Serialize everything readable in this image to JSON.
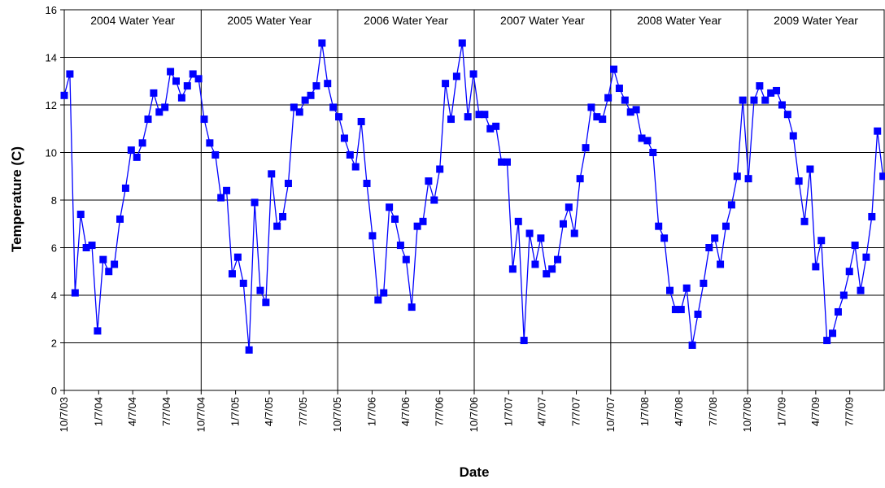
{
  "chart_data": {
    "type": "line",
    "xlabel": "Date",
    "ylabel": "Temperature (C)",
    "ylim": [
      0,
      16
    ],
    "yticks": [
      0,
      2,
      4,
      6,
      8,
      10,
      12,
      14,
      16
    ],
    "xlim": [
      "2003-10-07",
      "2009-10-07"
    ],
    "grid": "horizontal",
    "x_tick_labels": [
      {
        "date": "2003-10-07",
        "label": "10/7/03"
      },
      {
        "date": "2004-01-07",
        "label": "1/7/04"
      },
      {
        "date": "2004-04-07",
        "label": "4/7/04"
      },
      {
        "date": "2004-07-07",
        "label": "7/7/04"
      },
      {
        "date": "2004-10-07",
        "label": "10/7/04"
      },
      {
        "date": "2005-01-07",
        "label": "1/7/05"
      },
      {
        "date": "2005-04-07",
        "label": "4/7/05"
      },
      {
        "date": "2005-07-07",
        "label": "7/7/05"
      },
      {
        "date": "2005-10-07",
        "label": "10/7/05"
      },
      {
        "date": "2006-01-07",
        "label": "1/7/06"
      },
      {
        "date": "2006-04-07",
        "label": "4/7/06"
      },
      {
        "date": "2006-07-07",
        "label": "7/7/06"
      },
      {
        "date": "2006-10-07",
        "label": "10/7/06"
      },
      {
        "date": "2007-01-07",
        "label": "1/7/07"
      },
      {
        "date": "2007-04-07",
        "label": "4/7/07"
      },
      {
        "date": "2007-07-07",
        "label": "7/7/07"
      },
      {
        "date": "2007-10-07",
        "label": "10/7/07"
      },
      {
        "date": "2008-01-07",
        "label": "1/7/08"
      },
      {
        "date": "2008-04-07",
        "label": "4/7/08"
      },
      {
        "date": "2008-07-07",
        "label": "7/7/08"
      },
      {
        "date": "2008-10-07",
        "label": "10/7/08"
      },
      {
        "date": "2009-01-07",
        "label": "1/7/09"
      },
      {
        "date": "2009-04-07",
        "label": "4/7/09"
      },
      {
        "date": "2009-07-07",
        "label": "7/7/09"
      }
    ],
    "water_years": [
      {
        "label": "2004 Water Year",
        "start": "2003-10-07",
        "end": "2004-10-07"
      },
      {
        "label": "2005 Water Year",
        "start": "2004-10-07",
        "end": "2005-10-07"
      },
      {
        "label": "2006 Water Year",
        "start": "2005-10-07",
        "end": "2006-10-07"
      },
      {
        "label": "2007 Water Year",
        "start": "2006-10-07",
        "end": "2007-10-07"
      },
      {
        "label": "2008 Water Year",
        "start": "2007-10-07",
        "end": "2008-10-07"
      },
      {
        "label": "2009 Water Year",
        "start": "2008-10-07",
        "end": "2009-10-07"
      }
    ],
    "series": [
      {
        "color": "#0000ff",
        "marker": "square",
        "points": [
          {
            "date": "2003-10-07",
            "y": 12.4
          },
          {
            "date": "2003-10-22",
            "y": 13.3
          },
          {
            "date": "2003-11-05",
            "y": 4.1
          },
          {
            "date": "2003-11-20",
            "y": 7.4
          },
          {
            "date": "2003-12-05",
            "y": 6.0
          },
          {
            "date": "2003-12-20",
            "y": 6.1
          },
          {
            "date": "2004-01-04",
            "y": 2.5
          },
          {
            "date": "2004-01-19",
            "y": 5.5
          },
          {
            "date": "2004-02-03",
            "y": 5.0
          },
          {
            "date": "2004-02-18",
            "y": 5.3
          },
          {
            "date": "2004-03-04",
            "y": 7.2
          },
          {
            "date": "2004-03-19",
            "y": 8.5
          },
          {
            "date": "2004-04-03",
            "y": 10.1
          },
          {
            "date": "2004-04-18",
            "y": 9.8
          },
          {
            "date": "2004-05-03",
            "y": 10.4
          },
          {
            "date": "2004-05-18",
            "y": 11.4
          },
          {
            "date": "2004-06-02",
            "y": 12.5
          },
          {
            "date": "2004-06-17",
            "y": 11.7
          },
          {
            "date": "2004-07-02",
            "y": 11.9
          },
          {
            "date": "2004-07-17",
            "y": 13.4
          },
          {
            "date": "2004-08-01",
            "y": 13.0
          },
          {
            "date": "2004-08-16",
            "y": 12.3
          },
          {
            "date": "2004-08-31",
            "y": 12.8
          },
          {
            "date": "2004-09-15",
            "y": 13.3
          },
          {
            "date": "2004-09-30",
            "y": 13.1
          },
          {
            "date": "2004-10-15",
            "y": 11.4
          },
          {
            "date": "2004-10-30",
            "y": 10.4
          },
          {
            "date": "2004-11-14",
            "y": 9.9
          },
          {
            "date": "2004-11-29",
            "y": 8.1
          },
          {
            "date": "2004-12-14",
            "y": 8.4
          },
          {
            "date": "2004-12-29",
            "y": 4.9
          },
          {
            "date": "2005-01-13",
            "y": 5.6
          },
          {
            "date": "2005-01-28",
            "y": 4.5
          },
          {
            "date": "2005-02-12",
            "y": 1.7
          },
          {
            "date": "2005-02-27",
            "y": 7.9
          },
          {
            "date": "2005-03-14",
            "y": 4.2
          },
          {
            "date": "2005-03-29",
            "y": 3.7
          },
          {
            "date": "2005-04-13",
            "y": 9.1
          },
          {
            "date": "2005-04-28",
            "y": 6.9
          },
          {
            "date": "2005-05-13",
            "y": 7.3
          },
          {
            "date": "2005-05-28",
            "y": 8.7
          },
          {
            "date": "2005-06-12",
            "y": 11.9
          },
          {
            "date": "2005-06-27",
            "y": 11.7
          },
          {
            "date": "2005-07-12",
            "y": 12.2
          },
          {
            "date": "2005-07-27",
            "y": 12.4
          },
          {
            "date": "2005-08-11",
            "y": 12.8
          },
          {
            "date": "2005-08-26",
            "y": 14.6
          },
          {
            "date": "2005-09-10",
            "y": 12.9
          },
          {
            "date": "2005-09-25",
            "y": 11.9
          },
          {
            "date": "2005-10-10",
            "y": 11.5
          },
          {
            "date": "2005-10-25",
            "y": 10.6
          },
          {
            "date": "2005-11-09",
            "y": 9.9
          },
          {
            "date": "2005-11-24",
            "y": 9.4
          },
          {
            "date": "2005-12-09",
            "y": 11.3
          },
          {
            "date": "2005-12-24",
            "y": 8.7
          },
          {
            "date": "2006-01-08",
            "y": 6.5
          },
          {
            "date": "2006-01-23",
            "y": 3.8
          },
          {
            "date": "2006-02-07",
            "y": 4.1
          },
          {
            "date": "2006-02-22",
            "y": 7.7
          },
          {
            "date": "2006-03-09",
            "y": 7.2
          },
          {
            "date": "2006-03-24",
            "y": 6.1
          },
          {
            "date": "2006-04-08",
            "y": 5.5
          },
          {
            "date": "2006-04-23",
            "y": 3.5
          },
          {
            "date": "2006-05-08",
            "y": 6.9
          },
          {
            "date": "2006-05-23",
            "y": 7.1
          },
          {
            "date": "2006-06-07",
            "y": 8.8
          },
          {
            "date": "2006-06-22",
            "y": 8.0
          },
          {
            "date": "2006-07-07",
            "y": 9.3
          },
          {
            "date": "2006-07-22",
            "y": 12.9
          },
          {
            "date": "2006-08-06",
            "y": 11.4
          },
          {
            "date": "2006-08-21",
            "y": 13.2
          },
          {
            "date": "2006-09-05",
            "y": 14.6
          },
          {
            "date": "2006-09-20",
            "y": 11.5
          },
          {
            "date": "2006-10-05",
            "y": 13.3
          },
          {
            "date": "2006-10-20",
            "y": 11.6
          },
          {
            "date": "2006-11-04",
            "y": 11.6
          },
          {
            "date": "2006-11-19",
            "y": 11.0
          },
          {
            "date": "2006-12-04",
            "y": 11.1
          },
          {
            "date": "2006-12-19",
            "y": 9.6
          },
          {
            "date": "2007-01-03",
            "y": 9.6
          },
          {
            "date": "2007-01-18",
            "y": 5.1
          },
          {
            "date": "2007-02-02",
            "y": 7.1
          },
          {
            "date": "2007-02-17",
            "y": 2.1
          },
          {
            "date": "2007-03-04",
            "y": 6.6
          },
          {
            "date": "2007-03-19",
            "y": 5.3
          },
          {
            "date": "2007-04-03",
            "y": 6.4
          },
          {
            "date": "2007-04-18",
            "y": 4.9
          },
          {
            "date": "2007-05-03",
            "y": 5.1
          },
          {
            "date": "2007-05-18",
            "y": 5.5
          },
          {
            "date": "2007-06-02",
            "y": 7.0
          },
          {
            "date": "2007-06-17",
            "y": 7.7
          },
          {
            "date": "2007-07-02",
            "y": 6.6
          },
          {
            "date": "2007-07-17",
            "y": 8.9
          },
          {
            "date": "2007-08-01",
            "y": 10.2
          },
          {
            "date": "2007-08-16",
            "y": 11.9
          },
          {
            "date": "2007-08-31",
            "y": 11.5
          },
          {
            "date": "2007-09-15",
            "y": 11.4
          },
          {
            "date": "2007-09-30",
            "y": 12.3
          },
          {
            "date": "2007-10-15",
            "y": 13.5
          },
          {
            "date": "2007-10-30",
            "y": 12.7
          },
          {
            "date": "2007-11-14",
            "y": 12.2
          },
          {
            "date": "2007-11-29",
            "y": 11.7
          },
          {
            "date": "2007-12-14",
            "y": 11.8
          },
          {
            "date": "2007-12-29",
            "y": 10.6
          },
          {
            "date": "2008-01-13",
            "y": 10.5
          },
          {
            "date": "2008-01-28",
            "y": 10.0
          },
          {
            "date": "2008-02-12",
            "y": 6.9
          },
          {
            "date": "2008-02-27",
            "y": 6.4
          },
          {
            "date": "2008-03-13",
            "y": 4.2
          },
          {
            "date": "2008-03-28",
            "y": 3.4
          },
          {
            "date": "2008-04-12",
            "y": 3.4
          },
          {
            "date": "2008-04-27",
            "y": 4.3
          },
          {
            "date": "2008-05-12",
            "y": 1.9
          },
          {
            "date": "2008-05-27",
            "y": 3.2
          },
          {
            "date": "2008-06-11",
            "y": 4.5
          },
          {
            "date": "2008-06-26",
            "y": 6.0
          },
          {
            "date": "2008-07-11",
            "y": 6.4
          },
          {
            "date": "2008-07-26",
            "y": 5.3
          },
          {
            "date": "2008-08-10",
            "y": 6.9
          },
          {
            "date": "2008-08-25",
            "y": 7.8
          },
          {
            "date": "2008-09-09",
            "y": 9.0
          },
          {
            "date": "2008-09-24",
            "y": 12.2
          },
          {
            "date": "2008-10-09",
            "y": 8.9
          },
          {
            "date": "2008-10-24",
            "y": 12.2
          },
          {
            "date": "2008-11-08",
            "y": 12.8
          },
          {
            "date": "2008-11-23",
            "y": 12.2
          },
          {
            "date": "2008-12-08",
            "y": 12.5
          },
          {
            "date": "2008-12-23",
            "y": 12.6
          },
          {
            "date": "2009-01-07",
            "y": 12.0
          },
          {
            "date": "2009-01-22",
            "y": 11.6
          },
          {
            "date": "2009-02-06",
            "y": 10.7
          },
          {
            "date": "2009-02-21",
            "y": 8.8
          },
          {
            "date": "2009-03-08",
            "y": 7.1
          },
          {
            "date": "2009-03-23",
            "y": 9.3
          },
          {
            "date": "2009-04-07",
            "y": 5.2
          },
          {
            "date": "2009-04-22",
            "y": 6.3
          },
          {
            "date": "2009-05-07",
            "y": 2.1
          },
          {
            "date": "2009-05-22",
            "y": 2.4
          },
          {
            "date": "2009-06-06",
            "y": 3.3
          },
          {
            "date": "2009-06-21",
            "y": 4.0
          },
          {
            "date": "2009-07-06",
            "y": 5.0
          },
          {
            "date": "2009-07-21",
            "y": 6.1
          },
          {
            "date": "2009-08-05",
            "y": 4.2
          },
          {
            "date": "2009-08-20",
            "y": 5.6
          },
          {
            "date": "2009-09-04",
            "y": 7.3
          },
          {
            "date": "2009-09-19",
            "y": 10.9
          },
          {
            "date": "2009-10-04",
            "y": 9.0
          }
        ]
      }
    ]
  }
}
